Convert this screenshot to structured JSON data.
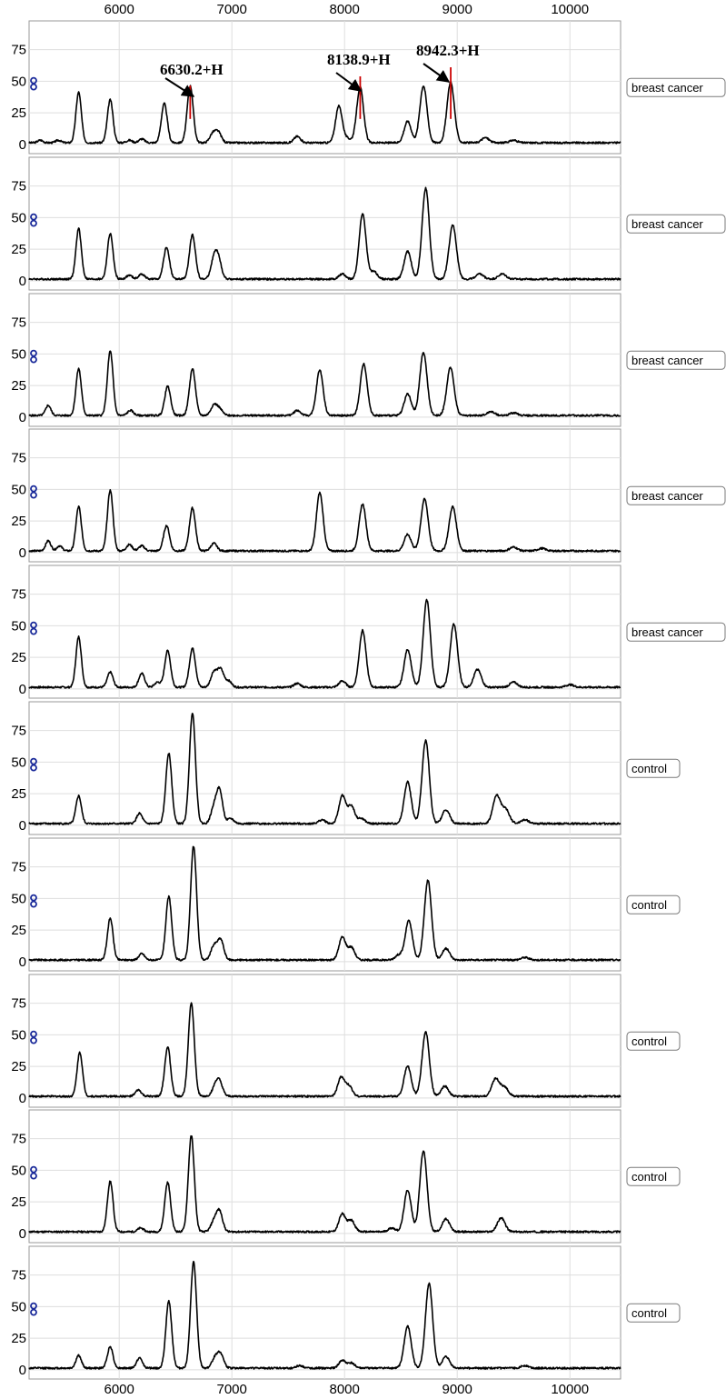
{
  "chart_data": {
    "type": "line",
    "x_ticks": [
      6000,
      7000,
      8000,
      9000,
      10000
    ],
    "y_ticks": [
      0,
      25,
      50,
      75
    ],
    "xlim": [
      5200,
      10450
    ],
    "ylim": [
      -3,
      92
    ],
    "grid": true,
    "icon": "double-circle-icon",
    "colors": {
      "trace": "#000000",
      "marker": "#cc0000",
      "icon": "#1a2a9a",
      "frame": "#9a9a9a",
      "grid": "#dedede"
    },
    "annotations": [
      {
        "label": "6630.2+H",
        "x": 6630.2
      },
      {
        "label": "8138.9+H",
        "x": 8138.9
      },
      {
        "label": "8942.3+H",
        "x": 8942.3
      }
    ],
    "panels": [
      {
        "label": "breast cancer",
        "peaks": [
          [
            5300,
            2
          ],
          [
            5460,
            2
          ],
          [
            5640,
            40
          ],
          [
            5920,
            34
          ],
          [
            6090,
            2
          ],
          [
            6200,
            3
          ],
          [
            6400,
            31
          ],
          [
            6630,
            45
          ],
          [
            6830,
            7
          ],
          [
            6880,
            8
          ],
          [
            7580,
            5
          ],
          [
            7950,
            29
          ],
          [
            8030,
            3
          ],
          [
            8138,
            44
          ],
          [
            8560,
            17
          ],
          [
            8700,
            45
          ],
          [
            8942,
            48
          ],
          [
            9250,
            4
          ],
          [
            9500,
            2
          ]
        ]
      },
      {
        "label": "breast cancer",
        "peaks": [
          [
            5640,
            40
          ],
          [
            5920,
            36
          ],
          [
            6090,
            3
          ],
          [
            6200,
            4
          ],
          [
            6420,
            25
          ],
          [
            6650,
            35
          ],
          [
            6840,
            15
          ],
          [
            6880,
            15
          ],
          [
            7980,
            4
          ],
          [
            8160,
            52
          ],
          [
            8260,
            6
          ],
          [
            8560,
            22
          ],
          [
            8720,
            72
          ],
          [
            8960,
            43
          ],
          [
            9200,
            4
          ],
          [
            9400,
            4
          ]
        ]
      },
      {
        "label": "breast cancer",
        "peaks": [
          [
            5370,
            8
          ],
          [
            5640,
            37
          ],
          [
            5920,
            51
          ],
          [
            6100,
            4
          ],
          [
            6430,
            23
          ],
          [
            6650,
            37
          ],
          [
            6840,
            8
          ],
          [
            6890,
            5
          ],
          [
            7580,
            4
          ],
          [
            7780,
            36
          ],
          [
            8170,
            41
          ],
          [
            8560,
            17
          ],
          [
            8700,
            50
          ],
          [
            8940,
            38
          ],
          [
            9300,
            3
          ],
          [
            9500,
            2
          ]
        ]
      },
      {
        "label": "breast cancer",
        "peaks": [
          [
            5370,
            8
          ],
          [
            5470,
            4
          ],
          [
            5640,
            35
          ],
          [
            5920,
            48
          ],
          [
            6090,
            5
          ],
          [
            6200,
            4
          ],
          [
            6420,
            20
          ],
          [
            6650,
            34
          ],
          [
            6840,
            6
          ],
          [
            7780,
            46
          ],
          [
            8160,
            37
          ],
          [
            8560,
            13
          ],
          [
            8710,
            41
          ],
          [
            8960,
            35
          ],
          [
            9500,
            3
          ],
          [
            9750,
            2
          ]
        ]
      },
      {
        "label": "breast cancer",
        "peaks": [
          [
            5640,
            40
          ],
          [
            5920,
            12
          ],
          [
            6200,
            11
          ],
          [
            6340,
            4
          ],
          [
            6430,
            29
          ],
          [
            6650,
            31
          ],
          [
            6840,
            12
          ],
          [
            6900,
            14
          ],
          [
            6970,
            5
          ],
          [
            7580,
            3
          ],
          [
            7980,
            5
          ],
          [
            8160,
            45
          ],
          [
            8560,
            30
          ],
          [
            8730,
            69
          ],
          [
            8970,
            50
          ],
          [
            9180,
            14
          ],
          [
            9500,
            4
          ],
          [
            10000,
            2
          ]
        ]
      },
      {
        "label": "control",
        "peaks": [
          [
            5640,
            22
          ],
          [
            6180,
            8
          ],
          [
            6440,
            56
          ],
          [
            6650,
            88
          ],
          [
            6840,
            12
          ],
          [
            6890,
            26
          ],
          [
            6990,
            4
          ],
          [
            7800,
            3
          ],
          [
            7980,
            22
          ],
          [
            8060,
            14
          ],
          [
            8150,
            4
          ],
          [
            8560,
            33
          ],
          [
            8720,
            66
          ],
          [
            8900,
            11
          ],
          [
            9350,
            22
          ],
          [
            9430,
            11
          ],
          [
            9600,
            3
          ]
        ]
      },
      {
        "label": "control",
        "peaks": [
          [
            5920,
            33
          ],
          [
            6200,
            5
          ],
          [
            6440,
            50
          ],
          [
            6660,
            90
          ],
          [
            6840,
            11
          ],
          [
            6900,
            16
          ],
          [
            7980,
            18
          ],
          [
            8060,
            10
          ],
          [
            8480,
            4
          ],
          [
            8570,
            31
          ],
          [
            8740,
            63
          ],
          [
            8900,
            9
          ],
          [
            9600,
            2
          ]
        ]
      },
      {
        "label": "control",
        "peaks": [
          [
            5650,
            35
          ],
          [
            6170,
            5
          ],
          [
            6430,
            39
          ],
          [
            6640,
            74
          ],
          [
            6850,
            7
          ],
          [
            6890,
            11
          ],
          [
            7970,
            15
          ],
          [
            8040,
            8
          ],
          [
            8560,
            24
          ],
          [
            8720,
            51
          ],
          [
            8890,
            8
          ],
          [
            9340,
            14
          ],
          [
            9420,
            7
          ]
        ]
      },
      {
        "label": "control",
        "peaks": [
          [
            5920,
            40
          ],
          [
            6190,
            3
          ],
          [
            6430,
            39
          ],
          [
            6640,
            76
          ],
          [
            6840,
            8
          ],
          [
            6890,
            16
          ],
          [
            7980,
            14
          ],
          [
            8060,
            9
          ],
          [
            8420,
            3
          ],
          [
            8560,
            33
          ],
          [
            8700,
            64
          ],
          [
            8900,
            10
          ],
          [
            9390,
            11
          ]
        ]
      },
      {
        "label": "control",
        "peaks": [
          [
            5640,
            10
          ],
          [
            5920,
            17
          ],
          [
            6180,
            8
          ],
          [
            6440,
            53
          ],
          [
            6660,
            84
          ],
          [
            6850,
            8
          ],
          [
            6900,
            11
          ],
          [
            7600,
            2
          ],
          [
            7980,
            6
          ],
          [
            8060,
            4
          ],
          [
            8560,
            33
          ],
          [
            8750,
            67
          ],
          [
            8900,
            9
          ],
          [
            9600,
            2
          ]
        ]
      }
    ]
  }
}
